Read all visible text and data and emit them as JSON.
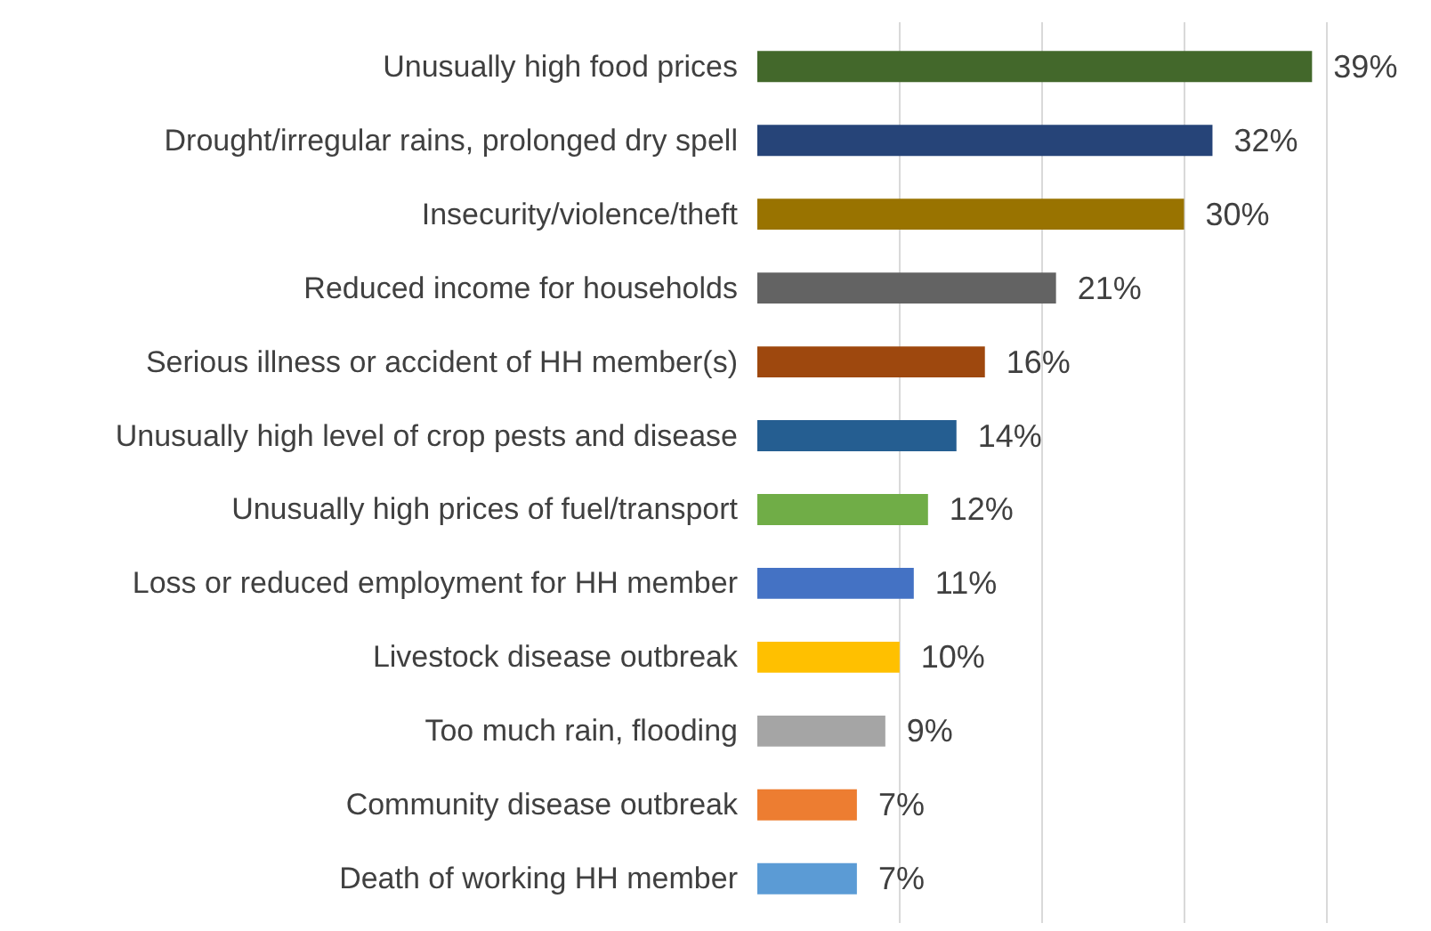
{
  "chart_data": {
    "type": "bar",
    "orientation": "horizontal",
    "categories": [
      "Unusually high food prices",
      "Drought/irregular rains, prolonged dry spell",
      "Insecurity/violence/theft",
      "Reduced income for households",
      "Serious illness or accident of HH member(s)",
      "Unusually high level of crop pests and disease",
      "Unusually high prices of fuel/transport",
      "Loss or reduced employment for HH member",
      "Livestock disease outbreak",
      "Too much rain, flooding",
      "Community disease outbreak",
      "Death of working HH member"
    ],
    "values": [
      39,
      32,
      30,
      21,
      16,
      14,
      12,
      11,
      10,
      9,
      7,
      7
    ],
    "value_labels": [
      "39%",
      "32%",
      "30%",
      "21%",
      "16%",
      "14%",
      "12%",
      "11%",
      "10%",
      "9%",
      "7%",
      "7%"
    ],
    "colors": [
      "#43682b",
      "#264478",
      "#997300",
      "#636363",
      "#9e480e",
      "#255e91",
      "#70ad47",
      "#4472c4",
      "#ffc000",
      "#a5a5a5",
      "#ed7d31",
      "#5b9bd5"
    ],
    "grid": "x",
    "tick_labels": "y"
  }
}
